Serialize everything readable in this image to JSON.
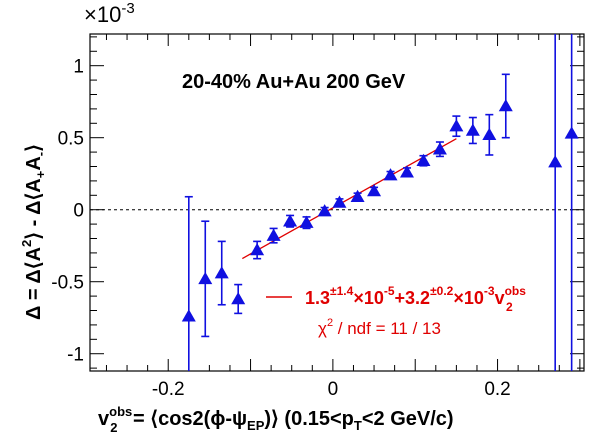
{
  "chart_data": {
    "type": "scatter",
    "multiplier_label": "×10",
    "multiplier_exponent": "-3",
    "annotation": "20-40% Au+Au 200 GeV",
    "xlabel": {
      "v": "v",
      "sup": "obs",
      "sub": "2",
      "mid": " = ⟨cos2(ϕ-ψ",
      "ep": "EP",
      "close": ")⟩ (0.15<p",
      "t": "T",
      "tail": "<2 GeV/c)"
    },
    "ylabel": {
      "lead": "Δ = Δ⟨A",
      "sup": "2",
      "mid": "⟩ - Δ⟨A",
      "sub1": "+",
      "sep": "A",
      "sub2": "-",
      "end": "⟩"
    },
    "xlim": [
      -0.295,
      0.305
    ],
    "ylim": [
      -1.12,
      1.22
    ],
    "xticks": [
      {
        "value": -0.2,
        "label": "-0.2"
      },
      {
        "value": -0.1,
        "label": ""
      },
      {
        "value": 0.0,
        "label": "0"
      },
      {
        "value": 0.1,
        "label": ""
      },
      {
        "value": 0.2,
        "label": "0.2"
      }
    ],
    "yticks": [
      {
        "value": -1.0,
        "label": "-1"
      },
      {
        "value": -0.5,
        "label": "-0.5"
      },
      {
        "value": 0.0,
        "label": "0"
      },
      {
        "value": 0.5,
        "label": "0.5"
      },
      {
        "value": 1.0,
        "label": "1"
      }
    ],
    "series": [
      {
        "color": "#1010e0",
        "marker": "triangle",
        "points": [
          {
            "x": -0.175,
            "y": -0.74,
            "err": 0.83
          },
          {
            "x": -0.155,
            "y": -0.48,
            "err": 0.4
          },
          {
            "x": -0.135,
            "y": -0.44,
            "err": 0.22
          },
          {
            "x": -0.115,
            "y": -0.62,
            "err": 0.1
          },
          {
            "x": -0.092,
            "y": -0.28,
            "err": 0.06
          },
          {
            "x": -0.072,
            "y": -0.18,
            "err": 0.05
          },
          {
            "x": -0.052,
            "y": -0.08,
            "err": 0.04
          },
          {
            "x": -0.032,
            "y": -0.09,
            "err": 0.04
          },
          {
            "x": -0.01,
            "y": -0.01,
            "err": 0.025
          },
          {
            "x": 0.008,
            "y": 0.05,
            "err": 0.025
          },
          {
            "x": 0.03,
            "y": 0.09,
            "err": 0.025
          },
          {
            "x": 0.05,
            "y": 0.13,
            "err": 0.025
          },
          {
            "x": 0.07,
            "y": 0.24,
            "err": 0.025
          },
          {
            "x": 0.09,
            "y": 0.26,
            "err": 0.03
          },
          {
            "x": 0.11,
            "y": 0.34,
            "err": 0.035
          },
          {
            "x": 0.13,
            "y": 0.42,
            "err": 0.05
          },
          {
            "x": 0.15,
            "y": 0.58,
            "err": 0.07
          },
          {
            "x": 0.17,
            "y": 0.55,
            "err": 0.09
          },
          {
            "x": 0.19,
            "y": 0.52,
            "err": 0.14
          },
          {
            "x": 0.21,
            "y": 0.72,
            "err": 0.22
          },
          {
            "x": 0.27,
            "y": 0.33,
            "err": 3.0
          },
          {
            "x": 0.29,
            "y": 0.53,
            "err": 3.0
          }
        ]
      }
    ],
    "fit": {
      "color": "#e00000",
      "intercept": 0.013,
      "slope": 3.2,
      "x_range": [
        -0.11,
        0.15
      ],
      "label": {
        "coef1": "1.3",
        "err1_sup": "±1.4",
        "times1": "×10",
        "exp1": "-5",
        "plus": "+3.2",
        "err2_sup": "±0.2",
        "times2": "×10",
        "exp2": "-3",
        "v": "v",
        "v_sup": "obs",
        "v_sub": "2"
      },
      "chi2": {
        "sym": "χ",
        "sup": "2",
        "rest": " / ndf = 11 / 13"
      }
    },
    "zero_line": {
      "y": 0,
      "style": "dashed"
    },
    "grid": false,
    "legend": "inside lower right"
  }
}
